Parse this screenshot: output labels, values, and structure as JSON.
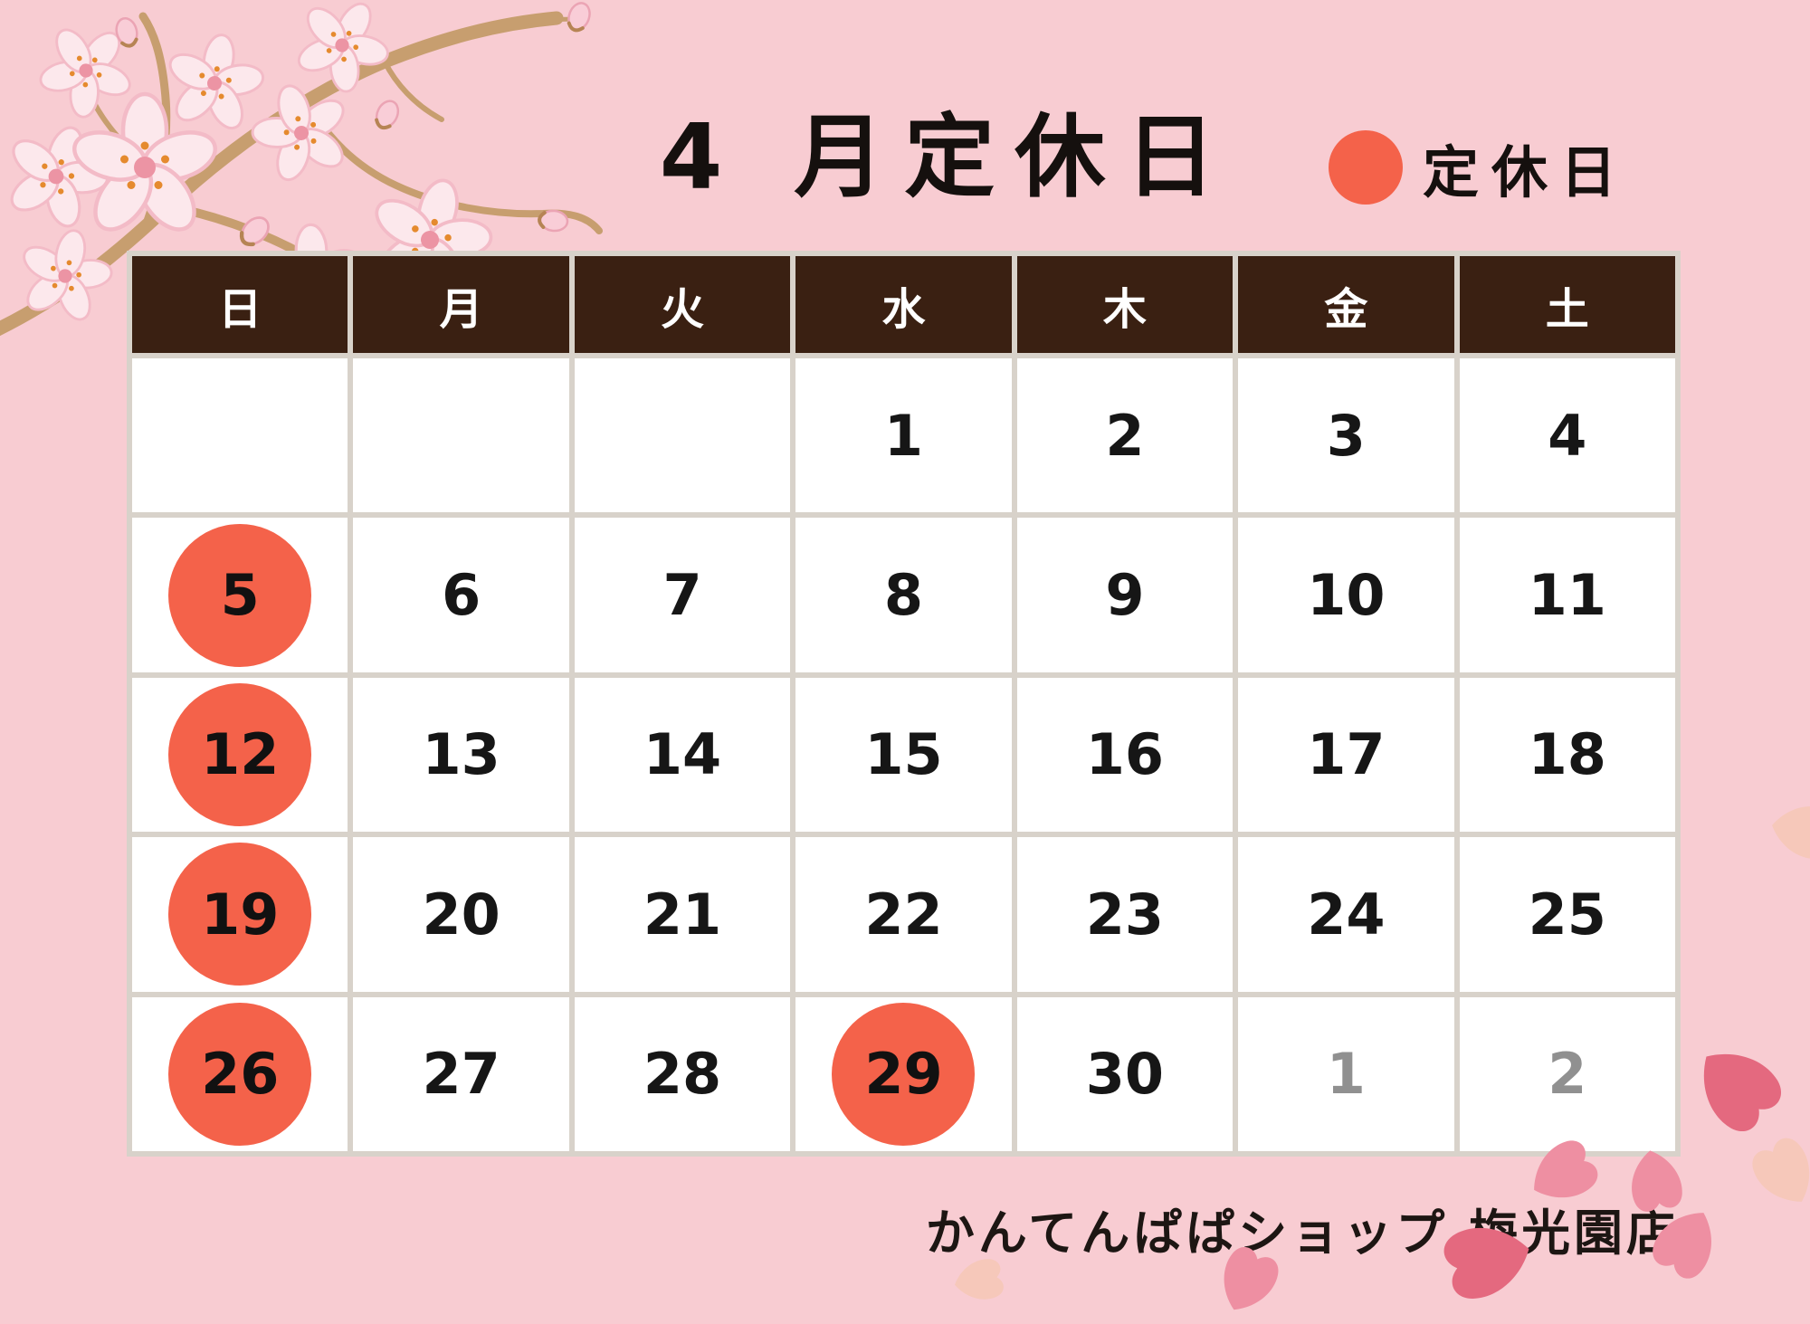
{
  "title": "4 月定休日",
  "legend": {
    "marker_icon": "closed-day-dot",
    "label": "定休日"
  },
  "calendar": {
    "weekdays": [
      "日",
      "月",
      "火",
      "水",
      "木",
      "金",
      "土"
    ],
    "weeks": [
      [
        {
          "d": ""
        },
        {
          "d": ""
        },
        {
          "d": ""
        },
        {
          "d": "1"
        },
        {
          "d": "2"
        },
        {
          "d": "3"
        },
        {
          "d": "4"
        }
      ],
      [
        {
          "d": "5",
          "closed": true
        },
        {
          "d": "6"
        },
        {
          "d": "7"
        },
        {
          "d": "8"
        },
        {
          "d": "9"
        },
        {
          "d": "10"
        },
        {
          "d": "11"
        }
      ],
      [
        {
          "d": "12",
          "closed": true
        },
        {
          "d": "13"
        },
        {
          "d": "14"
        },
        {
          "d": "15"
        },
        {
          "d": "16"
        },
        {
          "d": "17"
        },
        {
          "d": "18"
        }
      ],
      [
        {
          "d": "19",
          "closed": true
        },
        {
          "d": "20"
        },
        {
          "d": "21"
        },
        {
          "d": "22"
        },
        {
          "d": "23"
        },
        {
          "d": "24"
        },
        {
          "d": "25"
        }
      ],
      [
        {
          "d": "26",
          "closed": true
        },
        {
          "d": "27"
        },
        {
          "d": "28"
        },
        {
          "d": "29",
          "closed": true
        },
        {
          "d": "30"
        },
        {
          "d": "1",
          "other": true
        },
        {
          "d": "2",
          "other": true
        }
      ]
    ],
    "closed_dates": [
      "5",
      "12",
      "19",
      "26",
      "29"
    ]
  },
  "footer": {
    "shop_name": "かんてんぱぱショップ 梅光園店"
  },
  "decorations": {
    "top_left": "cherry-blossom-branch",
    "bottom_right": "sakura-petals"
  },
  "colors": {
    "background": "#f8ccd2",
    "header_bg": "#3a2012",
    "grid_gap": "#d8d2ca",
    "cell_bg": "#ffffff",
    "closed_circle": "#f4624a",
    "other_month_text": "#909090"
  }
}
